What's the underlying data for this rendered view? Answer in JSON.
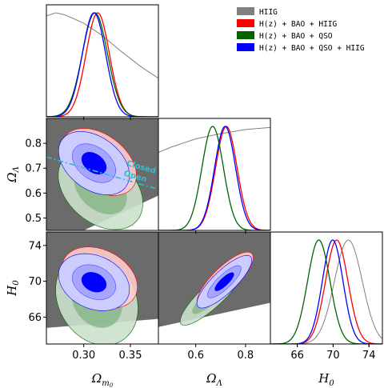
{
  "chart_data": {
    "type": "corner",
    "parameters": [
      {
        "name": "omega_m0",
        "label": "Ω",
        "sub": "m",
        "subsub": "0",
        "range": [
          0.26,
          0.38
        ],
        "ticks": [
          0.3,
          0.35
        ],
        "tick_labels": [
          "0.30",
          "0.35"
        ]
      },
      {
        "name": "omega_lambda",
        "label": "Ω",
        "sub": "Λ",
        "range": [
          0.45,
          0.9
        ],
        "ticks": [
          0.5,
          0.6,
          0.7,
          0.8
        ],
        "tick_labels": [
          "0.5",
          "0.6",
          "0.7",
          "0.8"
        ],
        "bottom_ticks": [
          0.6,
          0.8
        ],
        "bottom_tick_labels": [
          "0.6",
          "0.8"
        ]
      },
      {
        "name": "h0",
        "label": "H",
        "sub": "0",
        "range": [
          63.0,
          75.5
        ],
        "ticks": [
          66,
          70,
          74
        ],
        "tick_labels": [
          "66",
          "70",
          "74"
        ]
      }
    ],
    "series": [
      {
        "name": "HIIG",
        "color": "#808080"
      },
      {
        "name": "H(z) + BAO + HIIG",
        "color": "#ff0000"
      },
      {
        "name": "H(z) + BAO + QSO",
        "color": "#006400"
      },
      {
        "name": "H(z) + BAO + QSO + HIIG",
        "color": "#0000ff"
      }
    ],
    "marginals": {
      "omega_m0": [
        {
          "series": "HIIG",
          "kind": "curve",
          "x": [
            0.26,
            0.27,
            0.28,
            0.3,
            0.32,
            0.34,
            0.36,
            0.38
          ],
          "y": [
            0.97,
            1.0,
            0.98,
            0.9,
            0.78,
            0.63,
            0.49,
            0.37
          ]
        },
        {
          "series": "H(z) + BAO + HIIG",
          "kind": "gauss",
          "mean": 0.315,
          "sigma": 0.0125
        },
        {
          "series": "H(z) + BAO + QSO",
          "kind": "gauss",
          "mean": 0.312,
          "sigma": 0.0135
        },
        {
          "series": "H(z) + BAO + QSO + HIIG",
          "kind": "gauss",
          "mean": 0.311,
          "sigma": 0.0125
        }
      ],
      "omega_lambda": [
        {
          "series": "HIIG",
          "kind": "curve",
          "x": [
            0.45,
            0.5,
            0.6,
            0.7,
            0.8,
            0.9
          ],
          "y": [
            0.75,
            0.8,
            0.88,
            0.93,
            0.97,
            0.99
          ]
        },
        {
          "series": "H(z) + BAO + HIIG",
          "kind": "gauss",
          "mean": 0.723,
          "sigma": 0.043
        },
        {
          "series": "H(z) + BAO + QSO",
          "kind": "gauss",
          "mean": 0.668,
          "sigma": 0.043
        },
        {
          "series": "H(z) + BAO + QSO + HIIG",
          "kind": "gauss",
          "mean": 0.718,
          "sigma": 0.042
        }
      ],
      "h0": [
        {
          "series": "HIIG",
          "kind": "gauss",
          "mean": 71.7,
          "sigma": 1.55
        },
        {
          "series": "H(z) + BAO + HIIG",
          "kind": "gauss",
          "mean": 70.4,
          "sigma": 1.25
        },
        {
          "series": "H(z) + BAO + QSO",
          "kind": "gauss",
          "mean": 68.4,
          "sigma": 1.25
        },
        {
          "series": "H(z) + BAO + QSO + HIIG",
          "kind": "gauss",
          "mean": 69.95,
          "sigma": 1.15
        }
      ]
    },
    "contours": {
      "omega_lambda_vs_omega_m0": [
        {
          "series": "HIIG",
          "kind": "region",
          "polygon": [
            [
              0.26,
              0.45
            ],
            [
              0.275,
              0.45
            ],
            [
              0.38,
              0.65
            ],
            [
              0.38,
              0.9
            ],
            [
              0.26,
              0.9
            ]
          ]
        },
        {
          "series": "HIIG",
          "kind": "region",
          "polygon": [
            [
              0.26,
              0.45
            ],
            [
              0.3,
              0.45
            ],
            [
              0.38,
              0.59
            ],
            [
              0.38,
              0.9
            ],
            [
              0.26,
              0.9
            ]
          ]
        },
        {
          "series": "H(z) + BAO + QSO",
          "kind": "ellipse",
          "center": [
            0.318,
            0.615
          ],
          "sigma": [
            0.0185,
            0.066
          ],
          "corr": -0.35
        },
        {
          "series": "H(z) + BAO + HIIG",
          "kind": "ellipse",
          "center": [
            0.316,
            0.725
          ],
          "sigma": [
            0.0165,
            0.055
          ],
          "corr": -0.4
        },
        {
          "series": "H(z) + BAO + QSO + HIIG",
          "kind": "ellipse",
          "center": [
            0.311,
            0.72
          ],
          "sigma": [
            0.0155,
            0.052
          ],
          "corr": -0.38
        }
      ],
      "h0_vs_omega_m0": [
        {
          "series": "HIIG",
          "kind": "region",
          "polygon": [
            [
              0.26,
              67.4
            ],
            [
              0.38,
              68.8
            ],
            [
              0.38,
              74.6
            ],
            [
              0.26,
              75.5
            ]
          ]
        },
        {
          "series": "HIIG",
          "kind": "region",
          "polygon": [
            [
              0.26,
              64.8
            ],
            [
              0.38,
              65.8
            ],
            [
              0.38,
              75.5
            ],
            [
              0.26,
              75.5
            ]
          ]
        },
        {
          "series": "H(z) + BAO + QSO",
          "kind": "ellipse",
          "center": [
            0.314,
            68.0
          ],
          "sigma": [
            0.018,
            2.1
          ],
          "corr": -0.2
        },
        {
          "series": "H(z) + BAO + HIIG",
          "kind": "ellipse",
          "center": [
            0.317,
            70.4
          ],
          "sigma": [
            0.0165,
            1.4
          ],
          "corr": -0.3
        },
        {
          "series": "H(z) + BAO + QSO + HIIG",
          "kind": "ellipse",
          "center": [
            0.311,
            69.9
          ],
          "sigma": [
            0.0155,
            1.3
          ],
          "corr": -0.25
        }
      ],
      "h0_vs_omega_lambda": [
        {
          "series": "HIIG",
          "kind": "region",
          "polygon": [
            [
              0.45,
              66.8
            ],
            [
              0.9,
              70.4
            ],
            [
              0.9,
              74.6
            ],
            [
              0.45,
              75.5
            ]
          ]
        },
        {
          "series": "HIIG",
          "kind": "region",
          "polygon": [
            [
              0.45,
              64.9
            ],
            [
              0.9,
              67.6
            ],
            [
              0.9,
              75.5
            ],
            [
              0.45,
              75.5
            ]
          ]
        },
        {
          "series": "H(z) + BAO + QSO",
          "kind": "ellipse",
          "center": [
            0.665,
            68.4
          ],
          "sigma": [
            0.052,
            1.35
          ],
          "corr": 0.86
        },
        {
          "series": "H(z) + BAO + HIIG",
          "kind": "ellipse",
          "center": [
            0.718,
            70.2
          ],
          "sigma": [
            0.046,
            1.25
          ],
          "corr": 0.8
        },
        {
          "series": "H(z) + BAO + QSO + HIIG",
          "kind": "ellipse",
          "center": [
            0.715,
            69.95
          ],
          "sigma": [
            0.045,
            1.2
          ],
          "corr": 0.82
        }
      ]
    },
    "reference_line": {
      "panel": "omega_lambda_vs_omega_m0",
      "points": [
        [
          0.26,
          0.745
        ],
        [
          0.38,
          0.615
        ]
      ],
      "labels": [
        "Closed",
        "Open"
      ],
      "color": "#2bbfd6"
    },
    "legend": {
      "placement": "top-right",
      "entries": [
        "HIIG",
        "H(z) + BAO + HIIG",
        "H(z) + BAO + QSO",
        "H(z) + BAO + QSO + HIIG"
      ]
    },
    "grid": false
  }
}
